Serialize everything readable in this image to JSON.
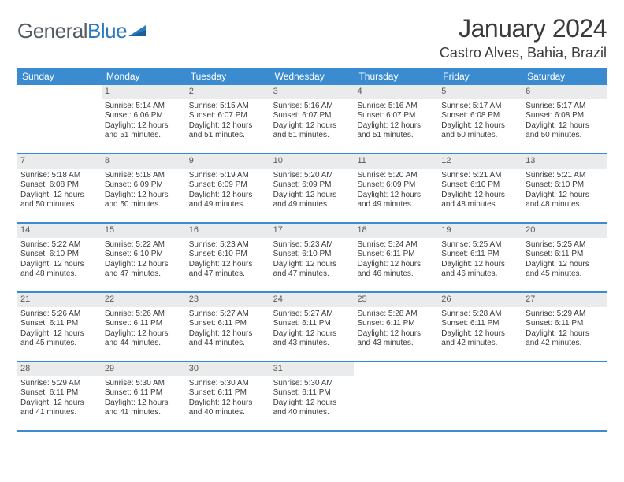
{
  "logo": {
    "text1": "General",
    "text2": "Blue"
  },
  "title": "January 2024",
  "location": "Castro Alves, Bahia, Brazil",
  "colors": {
    "headerBlue": "#3b8bd1",
    "dayBg": "#e9ebec",
    "text": "#3b3b3b",
    "logoGray": "#555c63",
    "logoBlue": "#2b7bbf"
  },
  "daysOfWeek": [
    "Sunday",
    "Monday",
    "Tuesday",
    "Wednesday",
    "Thursday",
    "Friday",
    "Saturday"
  ],
  "weeks": [
    [
      null,
      {
        "n": "1",
        "sr": "5:14 AM",
        "ss": "6:06 PM",
        "dl": "12 hours and 51 minutes."
      },
      {
        "n": "2",
        "sr": "5:15 AM",
        "ss": "6:07 PM",
        "dl": "12 hours and 51 minutes."
      },
      {
        "n": "3",
        "sr": "5:16 AM",
        "ss": "6:07 PM",
        "dl": "12 hours and 51 minutes."
      },
      {
        "n": "4",
        "sr": "5:16 AM",
        "ss": "6:07 PM",
        "dl": "12 hours and 51 minutes."
      },
      {
        "n": "5",
        "sr": "5:17 AM",
        "ss": "6:08 PM",
        "dl": "12 hours and 50 minutes."
      },
      {
        "n": "6",
        "sr": "5:17 AM",
        "ss": "6:08 PM",
        "dl": "12 hours and 50 minutes."
      }
    ],
    [
      {
        "n": "7",
        "sr": "5:18 AM",
        "ss": "6:08 PM",
        "dl": "12 hours and 50 minutes."
      },
      {
        "n": "8",
        "sr": "5:18 AM",
        "ss": "6:09 PM",
        "dl": "12 hours and 50 minutes."
      },
      {
        "n": "9",
        "sr": "5:19 AM",
        "ss": "6:09 PM",
        "dl": "12 hours and 49 minutes."
      },
      {
        "n": "10",
        "sr": "5:20 AM",
        "ss": "6:09 PM",
        "dl": "12 hours and 49 minutes."
      },
      {
        "n": "11",
        "sr": "5:20 AM",
        "ss": "6:09 PM",
        "dl": "12 hours and 49 minutes."
      },
      {
        "n": "12",
        "sr": "5:21 AM",
        "ss": "6:10 PM",
        "dl": "12 hours and 48 minutes."
      },
      {
        "n": "13",
        "sr": "5:21 AM",
        "ss": "6:10 PM",
        "dl": "12 hours and 48 minutes."
      }
    ],
    [
      {
        "n": "14",
        "sr": "5:22 AM",
        "ss": "6:10 PM",
        "dl": "12 hours and 48 minutes."
      },
      {
        "n": "15",
        "sr": "5:22 AM",
        "ss": "6:10 PM",
        "dl": "12 hours and 47 minutes."
      },
      {
        "n": "16",
        "sr": "5:23 AM",
        "ss": "6:10 PM",
        "dl": "12 hours and 47 minutes."
      },
      {
        "n": "17",
        "sr": "5:23 AM",
        "ss": "6:10 PM",
        "dl": "12 hours and 47 minutes."
      },
      {
        "n": "18",
        "sr": "5:24 AM",
        "ss": "6:11 PM",
        "dl": "12 hours and 46 minutes."
      },
      {
        "n": "19",
        "sr": "5:25 AM",
        "ss": "6:11 PM",
        "dl": "12 hours and 46 minutes."
      },
      {
        "n": "20",
        "sr": "5:25 AM",
        "ss": "6:11 PM",
        "dl": "12 hours and 45 minutes."
      }
    ],
    [
      {
        "n": "21",
        "sr": "5:26 AM",
        "ss": "6:11 PM",
        "dl": "12 hours and 45 minutes."
      },
      {
        "n": "22",
        "sr": "5:26 AM",
        "ss": "6:11 PM",
        "dl": "12 hours and 44 minutes."
      },
      {
        "n": "23",
        "sr": "5:27 AM",
        "ss": "6:11 PM",
        "dl": "12 hours and 44 minutes."
      },
      {
        "n": "24",
        "sr": "5:27 AM",
        "ss": "6:11 PM",
        "dl": "12 hours and 43 minutes."
      },
      {
        "n": "25",
        "sr": "5:28 AM",
        "ss": "6:11 PM",
        "dl": "12 hours and 43 minutes."
      },
      {
        "n": "26",
        "sr": "5:28 AM",
        "ss": "6:11 PM",
        "dl": "12 hours and 42 minutes."
      },
      {
        "n": "27",
        "sr": "5:29 AM",
        "ss": "6:11 PM",
        "dl": "12 hours and 42 minutes."
      }
    ],
    [
      {
        "n": "28",
        "sr": "5:29 AM",
        "ss": "6:11 PM",
        "dl": "12 hours and 41 minutes."
      },
      {
        "n": "29",
        "sr": "5:30 AM",
        "ss": "6:11 PM",
        "dl": "12 hours and 41 minutes."
      },
      {
        "n": "30",
        "sr": "5:30 AM",
        "ss": "6:11 PM",
        "dl": "12 hours and 40 minutes."
      },
      {
        "n": "31",
        "sr": "5:30 AM",
        "ss": "6:11 PM",
        "dl": "12 hours and 40 minutes."
      },
      null,
      null,
      null
    ]
  ],
  "labels": {
    "sunrise": "Sunrise: ",
    "sunset": "Sunset: ",
    "daylight": "Daylight: "
  }
}
